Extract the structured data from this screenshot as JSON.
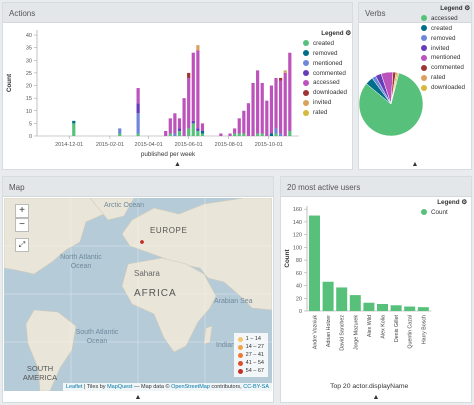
{
  "actions": {
    "title": "Actions",
    "legend_title": "Legend",
    "legend": [
      {
        "label": "created",
        "color": "#57c17b"
      },
      {
        "label": "removed",
        "color": "#006e8a"
      },
      {
        "label": "mentioned",
        "color": "#6f87d8"
      },
      {
        "label": "commented",
        "color": "#663db8"
      },
      {
        "label": "accessed",
        "color": "#bc52bc"
      },
      {
        "label": "downloaded",
        "color": "#9e3533"
      },
      {
        "label": "invited",
        "color": "#daa05d"
      },
      {
        "label": "rated",
        "color": "#d6b83c"
      }
    ],
    "chart_data": {
      "type": "bar",
      "stacked": true,
      "xlabel": "published per week",
      "ylabel": "Count",
      "x_ticks": [
        "2014-12-01",
        "2015-02-01",
        "2015-04-01",
        "2015-06-01",
        "2015-08-01",
        "2015-10-01"
      ],
      "y_ticks": [
        0,
        5,
        10,
        15,
        20,
        25,
        30,
        35,
        40
      ],
      "ylim": [
        0,
        42
      ],
      "series": [
        {
          "name": "created",
          "points": [
            [
              "2014-12-08",
              5
            ],
            [
              "2015-02-16",
              1
            ],
            [
              "2015-03-16",
              1
            ],
            [
              "2015-05-04",
              1
            ],
            [
              "2015-05-18",
              2
            ],
            [
              "2015-06-01",
              3
            ],
            [
              "2015-06-08",
              5
            ],
            [
              "2015-06-15",
              2
            ],
            [
              "2015-06-22",
              1
            ],
            [
              "2015-08-10",
              1
            ],
            [
              "2015-08-17",
              1
            ],
            [
              "2015-08-24",
              1
            ],
            [
              "2015-09-14",
              1
            ],
            [
              "2015-09-21",
              1
            ],
            [
              "2015-10-12",
              1
            ],
            [
              "2015-11-02",
              2
            ]
          ]
        },
        {
          "name": "removed",
          "points": [
            [
              "2014-12-08",
              1
            ],
            [
              "2015-06-22",
              1
            ],
            [
              "2015-10-05",
              1
            ]
          ]
        },
        {
          "name": "mentioned",
          "points": [
            [
              "2015-02-16",
              2
            ],
            [
              "2015-03-16",
              8
            ],
            [
              "2015-05-11",
              1
            ],
            [
              "2015-10-12",
              2
            ],
            [
              "2015-10-19",
              1
            ]
          ]
        },
        {
          "name": "commented",
          "points": [
            [
              "2015-03-16",
              4
            ],
            [
              "2015-05-18",
              1
            ],
            [
              "2015-06-08",
              1
            ],
            [
              "2015-06-15",
              1
            ]
          ]
        },
        {
          "name": "accessed",
          "points": [
            [
              "2015-03-16",
              6
            ],
            [
              "2015-04-27",
              2
            ],
            [
              "2015-05-04",
              6
            ],
            [
              "2015-05-11",
              8
            ],
            [
              "2015-05-18",
              4
            ],
            [
              "2015-05-25",
              15
            ],
            [
              "2015-06-01",
              20
            ],
            [
              "2015-06-08",
              27
            ],
            [
              "2015-06-15",
              31
            ],
            [
              "2015-06-22",
              3
            ],
            [
              "2015-07-20",
              1
            ],
            [
              "2015-08-03",
              1
            ],
            [
              "2015-08-10",
              2
            ],
            [
              "2015-08-17",
              6
            ],
            [
              "2015-08-24",
              9
            ],
            [
              "2015-08-31",
              13
            ],
            [
              "2015-09-07",
              21
            ],
            [
              "2015-09-14",
              25
            ],
            [
              "2015-09-21",
              20
            ],
            [
              "2015-09-28",
              14
            ],
            [
              "2015-10-05",
              19
            ],
            [
              "2015-10-12",
              20
            ],
            [
              "2015-10-19",
              21
            ],
            [
              "2015-10-26",
              25
            ],
            [
              "2015-11-02",
              31
            ]
          ]
        },
        {
          "name": "downloaded",
          "points": [
            [
              "2015-06-01",
              2
            ],
            [
              "2015-10-19",
              1
            ]
          ]
        },
        {
          "name": "invited",
          "points": [
            [
              "2015-06-15",
              2
            ],
            [
              "2015-10-26",
              1
            ]
          ]
        },
        {
          "name": "rated",
          "points": []
        }
      ]
    }
  },
  "verbs": {
    "title": "Verbs",
    "legend_title": "Legend",
    "legend": [
      {
        "label": "accessed",
        "color": "#57c17b"
      },
      {
        "label": "created",
        "color": "#006e8a"
      },
      {
        "label": "removed",
        "color": "#6f87d8"
      },
      {
        "label": "invited",
        "color": "#663db8"
      },
      {
        "label": "mentioned",
        "color": "#bc52bc"
      },
      {
        "label": "commented",
        "color": "#9e3533"
      },
      {
        "label": "rated",
        "color": "#daa05d"
      },
      {
        "label": "downloaded",
        "color": "#d6b83c"
      }
    ],
    "chart_data": {
      "type": "pie",
      "labels": [
        "accessed",
        "created",
        "removed",
        "invited",
        "mentioned",
        "commented",
        "rated",
        "downloaded"
      ],
      "values": [
        82,
        4,
        2,
        3,
        6,
        1.5,
        0.8,
        0.7
      ]
    }
  },
  "map": {
    "title": "Map",
    "zoom_in": "+",
    "zoom_out": "−",
    "fit_label": "⤢",
    "labels": {
      "arctic": "Arctic Ocean",
      "north_atlantic": "North Atlantic Ocean",
      "europe": "EUROPE",
      "africa": "AFRICA",
      "sahara": "Sahara",
      "arabian_sea": "Arabian Sea",
      "south_atlantic": "South Atlantic Ocean",
      "indian_ocean": "Indian Ocean",
      "south_america": "SOUTH AMERICA"
    },
    "legend": [
      {
        "label": "1 – 14",
        "color": "#f7c66a"
      },
      {
        "label": "14 – 27",
        "color": "#f1a245"
      },
      {
        "label": "27 – 41",
        "color": "#e97a30"
      },
      {
        "label": "41 – 54",
        "color": "#d9502b"
      },
      {
        "label": "54 – 67",
        "color": "#c32f27"
      }
    ],
    "attribution": {
      "leaflet": "Leaflet",
      "tiles_by": "| Tiles by",
      "mapquest": "MapQuest",
      "map_data": "— Map data ©",
      "osm": "OpenStreetMap",
      "contributors": "contributors,",
      "license": "CC-BY-SA"
    }
  },
  "users": {
    "title": "20 most active users",
    "legend_title": "Legend",
    "legend": [
      {
        "label": "Count",
        "color": "#57c17b"
      }
    ],
    "chart_data": {
      "type": "bar",
      "xlabel": "Top 20 actor.displayName",
      "ylabel": "Count",
      "y_ticks": [
        0,
        20,
        40,
        60,
        80,
        100,
        120,
        140,
        160
      ],
      "ylim": [
        0,
        165
      ],
      "categories": [
        "Andre Vozniuk",
        "Adrian Holzer",
        "David Sanchez",
        "Jorge Mazurek",
        "Alex Wild",
        "Alex Kolia",
        "Denis Gillet",
        "Quentin Cazal",
        "Harry Bosch"
      ],
      "values": [
        150,
        46,
        37,
        25,
        13,
        11,
        9,
        7,
        6
      ]
    }
  }
}
